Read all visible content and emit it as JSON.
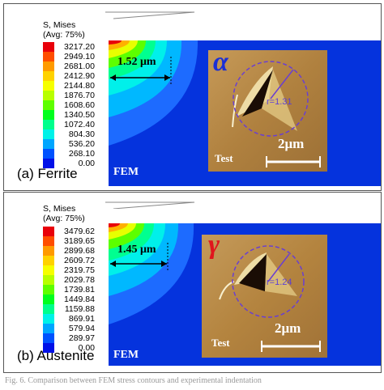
{
  "panels": [
    {
      "caption": "(a)  Ferrite",
      "legend_title": "S, Mises",
      "legend_avg": "(Avg: 75%)",
      "legend_values": [
        "3217.20",
        "2949.10",
        "2681.00",
        "2412.90",
        "2144.80",
        "1876.70",
        "1608.60",
        "1340.50",
        "1072.40",
        "804.30",
        "536.20",
        "268.10",
        "0.00"
      ],
      "dimension_label": "1.52 μm",
      "fem_label": "FEM",
      "test_label": "Test",
      "scale_label": "2μm",
      "phase_symbol": "α",
      "radius_label": "r=1.31"
    },
    {
      "caption": "(b)  Austenite",
      "legend_title": "S, Mises",
      "legend_avg": "(Avg: 75%)",
      "legend_values": [
        "3479.62",
        "3189.65",
        "2899.68",
        "2609.72",
        "2319.75",
        "2029.78",
        "1739.81",
        "1449.84",
        "1159.88",
        "869.91",
        "579.94",
        "289.97",
        "0.00"
      ],
      "dimension_label": "1.45 μm",
      "fem_label": "FEM",
      "test_label": "Test",
      "scale_label": "2μm",
      "phase_symbol": "γ",
      "radius_label": "r=1.24"
    }
  ],
  "colors": {
    "mesh_blue": "#0533dd",
    "alpha_symbol": "#1b2fd6",
    "gamma_symbol": "#e0151d",
    "circle": "#6a3fd0",
    "afm_base": "#b88a4a",
    "legend_scale": [
      "#e8000a",
      "#ff4d00",
      "#ff9a00",
      "#ffd200",
      "#f6ff00",
      "#b8ff00",
      "#5eff00",
      "#00ff1e",
      "#00ff8c",
      "#00f2e8",
      "#00a6ff",
      "#0052ff",
      "#0010e8"
    ]
  },
  "figure_caption": "Fig. 6. Comparison between FEM stress contours and experimental indentation"
}
